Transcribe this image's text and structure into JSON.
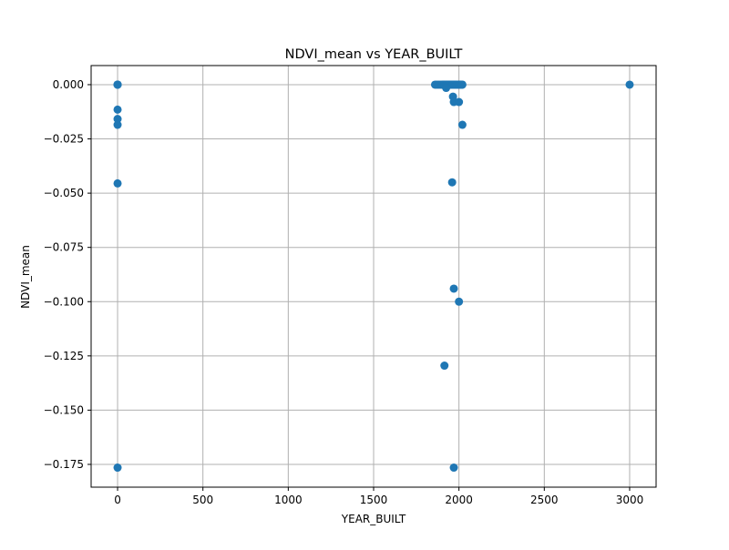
{
  "chart_data": {
    "type": "scatter",
    "title": "NDVI_mean vs YEAR_BUILT",
    "xlabel": "YEAR_BUILT",
    "ylabel": "NDVI_mean",
    "xlim": [
      -155,
      3155
    ],
    "ylim": [
      -0.1855,
      0.0088
    ],
    "xticks": [
      0,
      500,
      1000,
      1500,
      2000,
      2500,
      3000
    ],
    "xtick_labels": [
      "0",
      "500",
      "1000",
      "1500",
      "2000",
      "2500",
      "3000"
    ],
    "yticks": [
      0.0,
      -0.025,
      -0.05,
      -0.075,
      -0.1,
      -0.125,
      -0.15,
      -0.175
    ],
    "ytick_labels": [
      "0.000",
      "−0.025",
      "−0.050",
      "−0.075",
      "−0.100",
      "−0.125",
      "−0.150",
      "−0.175"
    ],
    "grid": true,
    "marker_color": "#1f77b4",
    "series": [
      {
        "x": [
          0,
          0,
          0,
          0,
          0,
          0,
          0,
          0,
          0,
          1860,
          1870,
          1880,
          1890,
          1900,
          1905,
          1910,
          1915,
          1920,
          1925,
          1930,
          1935,
          1940,
          1945,
          1950,
          1955,
          1960,
          1965,
          1970,
          1975,
          1980,
          1985,
          1990,
          1995,
          2000,
          2005,
          2010,
          2015,
          2020,
          1925,
          1965,
          1970,
          2000,
          2020,
          1960,
          1970,
          2000,
          1915,
          1970,
          3000
        ],
        "y": [
          0.0,
          0.0,
          0.0,
          -0.0115,
          -0.0158,
          -0.0185,
          -0.0455,
          -0.1765,
          0.0,
          0.0,
          0.0,
          0.0,
          0.0,
          0.0,
          0.0,
          0.0,
          0.0,
          0.0,
          0.0,
          0.0,
          0.0,
          0.0,
          0.0,
          0.0,
          0.0,
          0.0,
          0.0,
          0.0,
          0.0,
          0.0,
          0.0,
          0.0,
          0.0,
          0.0,
          0.0,
          0.0,
          0.0,
          0.0,
          -0.0015,
          -0.0055,
          -0.008,
          -0.008,
          -0.0185,
          -0.045,
          -0.094,
          -0.1,
          -0.1295,
          -0.1765,
          0.0
        ]
      }
    ]
  }
}
